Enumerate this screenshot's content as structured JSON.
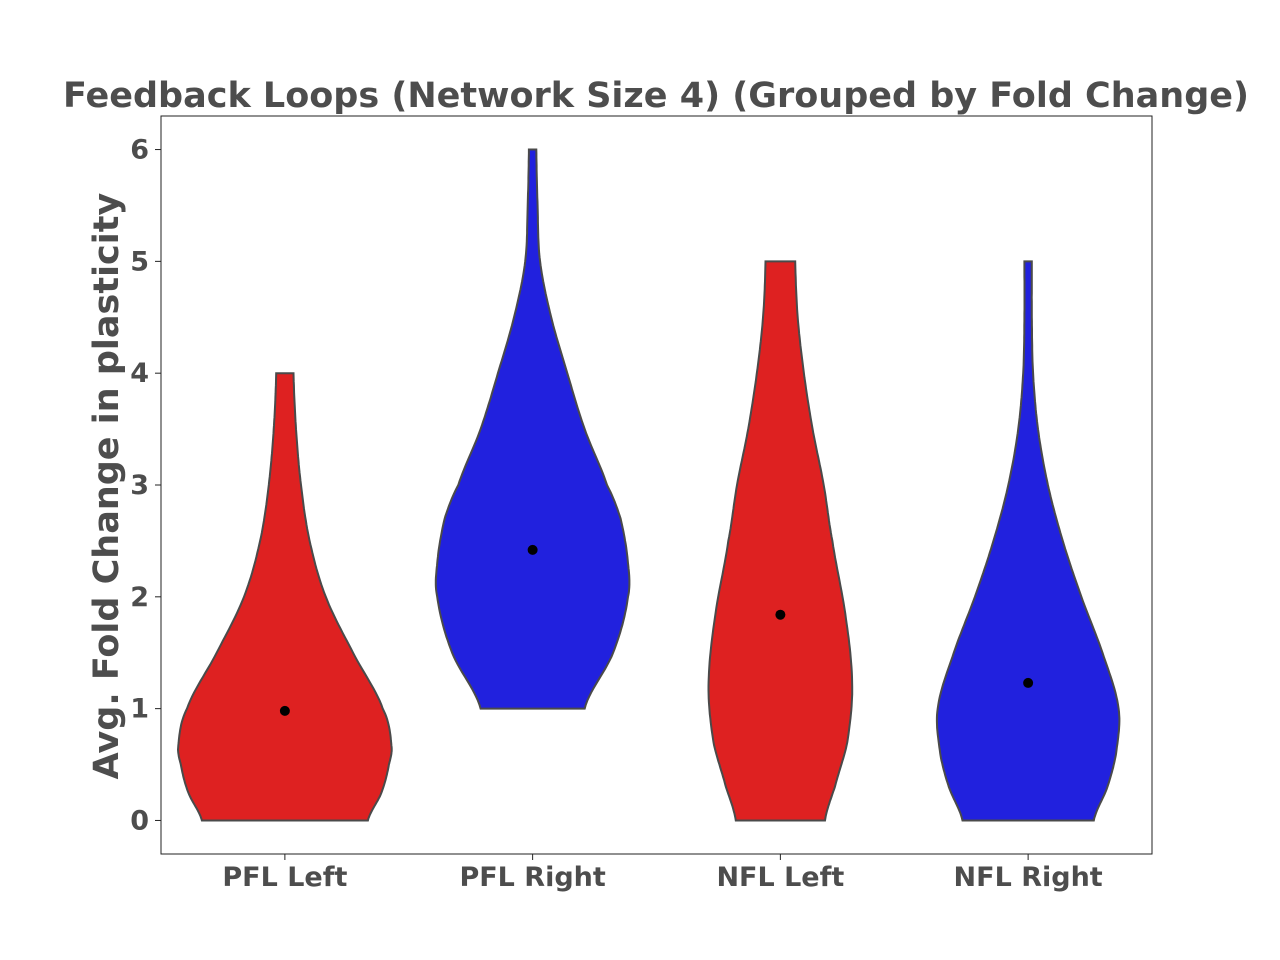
{
  "chart_data": {
    "type": "violin",
    "title": "Feedback Loops (Network  Size 4) (Grouped by Fold Change)",
    "xlabel": "",
    "ylabel": "Avg. Fold Change in plasticity",
    "ylim": [
      -0.3,
      6.3
    ],
    "yticks": [
      0,
      1,
      2,
      3,
      4,
      5,
      6
    ],
    "categories": [
      "PFL Left",
      "PFL Right",
      "NFL Left",
      "NFL Right"
    ],
    "colors": [
      "#de2121",
      "#2121de",
      "#de2121",
      "#2121de"
    ],
    "grid": false,
    "violins": [
      {
        "category": "PFL Left",
        "min": 0,
        "max": 4,
        "mean": 0.98,
        "profile": [
          [
            0,
            0.67
          ],
          [
            0.25,
            0.78
          ],
          [
            0.5,
            0.84
          ],
          [
            0.67,
            0.86
          ],
          [
            1.0,
            0.79
          ],
          [
            1.5,
            0.55
          ],
          [
            2.0,
            0.33
          ],
          [
            2.5,
            0.2
          ],
          [
            3.0,
            0.13
          ],
          [
            3.5,
            0.09
          ],
          [
            4.0,
            0.07
          ]
        ]
      },
      {
        "category": "PFL Right",
        "min": 1,
        "max": 6,
        "mean": 2.42,
        "profile": [
          [
            1.0,
            0.42
          ],
          [
            1.5,
            0.65
          ],
          [
            2.0,
            0.77
          ],
          [
            2.3,
            0.77
          ],
          [
            2.7,
            0.71
          ],
          [
            3.0,
            0.6
          ],
          [
            3.5,
            0.42
          ],
          [
            4.0,
            0.28
          ],
          [
            4.5,
            0.15
          ],
          [
            5.0,
            0.06
          ],
          [
            5.5,
            0.04
          ],
          [
            6.0,
            0.03
          ]
        ]
      },
      {
        "category": "NFL Left",
        "min": 0,
        "max": 5,
        "mean": 1.84,
        "profile": [
          [
            0,
            0.36
          ],
          [
            0.3,
            0.44
          ],
          [
            0.7,
            0.54
          ],
          [
            1.2,
            0.58
          ],
          [
            1.8,
            0.53
          ],
          [
            2.5,
            0.42
          ],
          [
            3.0,
            0.35
          ],
          [
            3.5,
            0.26
          ],
          [
            4.0,
            0.19
          ],
          [
            4.5,
            0.14
          ],
          [
            5.0,
            0.12
          ]
        ]
      },
      {
        "category": "NFL Right",
        "min": 0,
        "max": 5,
        "mean": 1.23,
        "profile": [
          [
            0,
            0.53
          ],
          [
            0.3,
            0.64
          ],
          [
            0.6,
            0.71
          ],
          [
            1.0,
            0.73
          ],
          [
            1.5,
            0.6
          ],
          [
            2.0,
            0.43
          ],
          [
            2.5,
            0.28
          ],
          [
            3.0,
            0.16
          ],
          [
            3.5,
            0.08
          ],
          [
            4.0,
            0.04
          ],
          [
            4.5,
            0.03
          ],
          [
            5.0,
            0.03
          ]
        ]
      }
    ]
  }
}
